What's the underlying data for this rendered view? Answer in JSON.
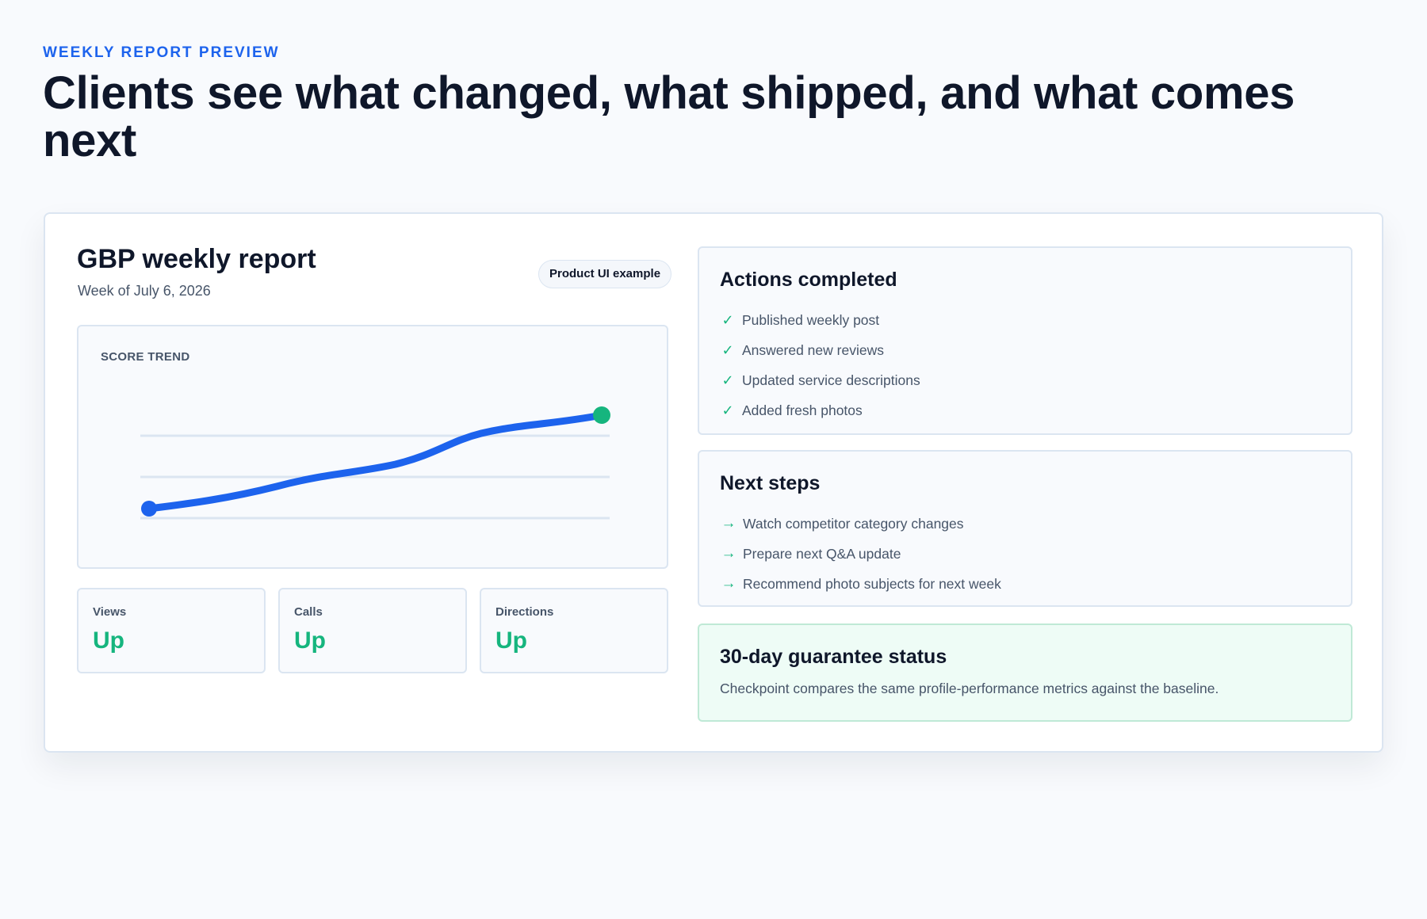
{
  "hero": {
    "eyebrow": "WEEKLY REPORT PREVIEW",
    "title": "Clients see what changed, what shipped, and what comes next"
  },
  "report": {
    "title": "GBP weekly report",
    "subtitle": "Week of July 6, 2026",
    "badge": "Product UI example",
    "trend": {
      "label": "SCORE TREND"
    },
    "metrics": [
      {
        "label": "Views",
        "value": "Up"
      },
      {
        "label": "Calls",
        "value": "Up"
      },
      {
        "label": "Directions",
        "value": "Up"
      }
    ]
  },
  "actions": {
    "title": "Actions completed",
    "icon": "check-icon",
    "items": [
      "Published weekly post",
      "Answered new reviews",
      "Updated service descriptions",
      "Added fresh photos"
    ]
  },
  "next_steps": {
    "title": "Next steps",
    "icon": "arrow-right-icon",
    "items": [
      "Watch competitor category changes",
      "Prepare next Q&A update",
      "Recommend photo subjects for next week"
    ]
  },
  "guarantee": {
    "title": "30-day guarantee status",
    "text": "Checkpoint compares the same profile-performance metrics against the baseline."
  },
  "colors": {
    "accent_blue": "#1d63ed",
    "success_green": "#16b57e",
    "heading": "#0f172a",
    "muted_text": "#475569",
    "border": "#dbe5f1"
  }
}
